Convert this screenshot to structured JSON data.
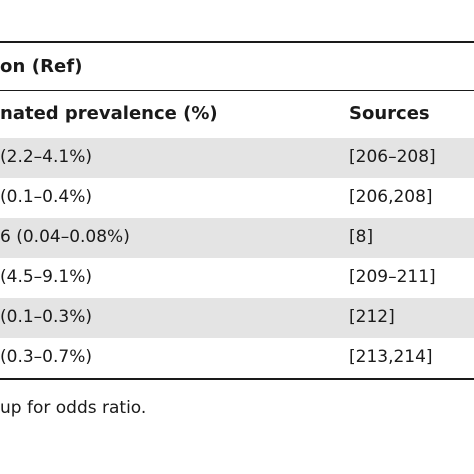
{
  "caption": "on (Ref)",
  "headers": {
    "prevalence": "nated prevalence (%)",
    "sources": "Sources"
  },
  "rows": [
    {
      "prevalence": "(2.2–4.1%)",
      "sources": "[206–208]"
    },
    {
      "prevalence": "(0.1–0.4%)",
      "sources": "[206,208]"
    },
    {
      "prevalence": "6 (0.04–0.08%)",
      "sources": "[8]"
    },
    {
      "prevalence": "(4.5–9.1%)",
      "sources": "[209–211]"
    },
    {
      "prevalence": "(0.1–0.3%)",
      "sources": "[212]"
    },
    {
      "prevalence": "(0.3–0.7%)",
      "sources": "[213,214]"
    }
  ],
  "footnote": "up for odds ratio.",
  "colors": {
    "row_shade": "#e4e4e4",
    "text": "#1a1a1a",
    "rule": "#1a1a1a"
  }
}
